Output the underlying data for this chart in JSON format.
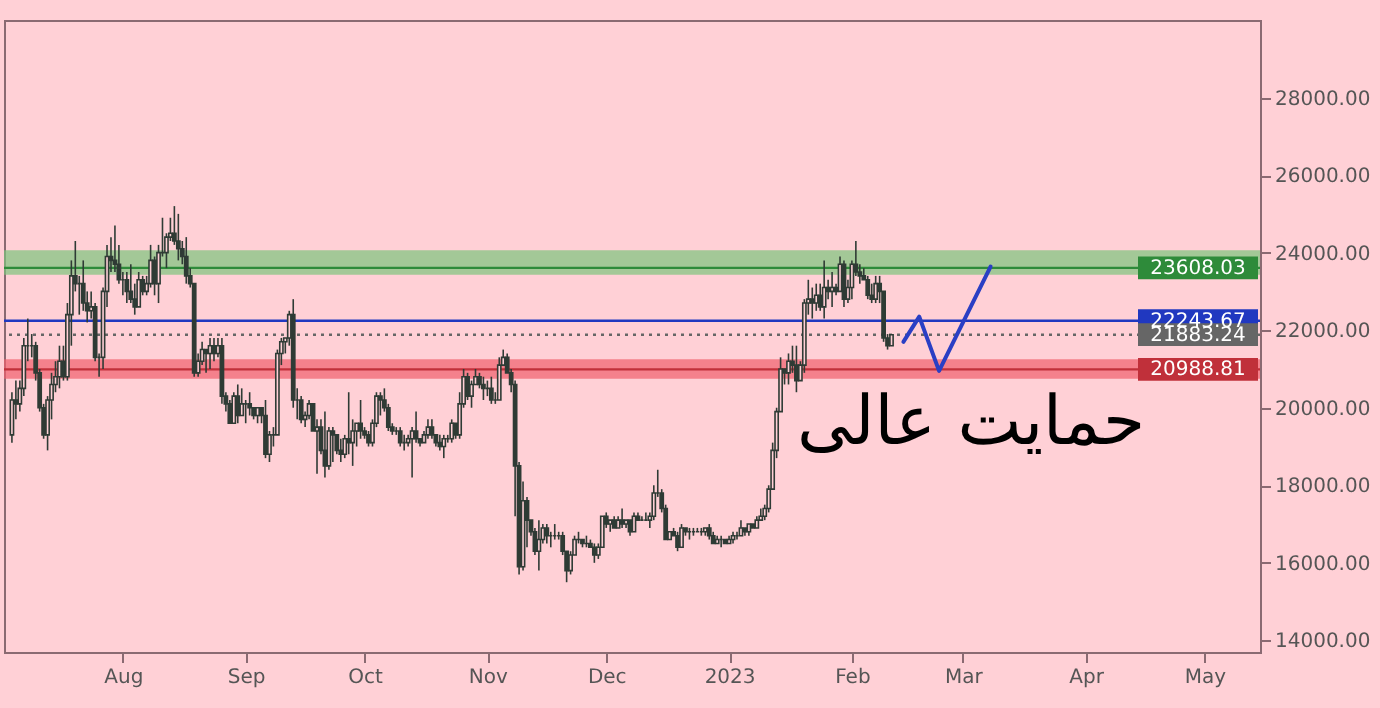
{
  "chart_data": {
    "type": "candlestick",
    "color": "#2f3b35",
    "x": [
      "2022-07-04",
      "2022-07-05",
      "2022-07-06",
      "2022-07-07",
      "2022-07-08",
      "2022-07-09",
      "2022-07-10",
      "2022-07-11",
      "2022-07-12",
      "2022-07-13",
      "2022-07-14",
      "2022-07-15",
      "2022-07-16",
      "2022-07-17",
      "2022-07-18",
      "2022-07-19",
      "2022-07-20",
      "2022-07-21",
      "2022-07-22",
      "2022-07-23",
      "2022-07-24",
      "2022-07-25",
      "2022-07-26",
      "2022-07-27",
      "2022-07-28",
      "2022-07-29",
      "2022-07-30",
      "2022-07-31",
      "2022-08-01",
      "2022-08-02",
      "2022-08-03",
      "2022-08-04",
      "2022-08-05",
      "2022-08-06",
      "2022-08-07",
      "2022-08-08",
      "2022-08-09",
      "2022-08-10",
      "2022-08-11",
      "2022-08-12",
      "2022-08-13",
      "2022-08-14",
      "2022-08-15",
      "2022-08-16",
      "2022-08-17",
      "2022-08-18",
      "2022-08-19",
      "2022-08-20",
      "2022-08-21",
      "2022-08-22",
      "2022-08-23",
      "2022-08-24",
      "2022-08-25",
      "2022-08-26",
      "2022-08-27",
      "2022-08-28",
      "2022-08-29",
      "2022-08-30",
      "2022-08-31",
      "2022-09-01",
      "2022-09-02",
      "2022-09-03",
      "2022-09-04",
      "2022-09-05",
      "2022-09-06",
      "2022-09-07",
      "2022-09-08",
      "2022-09-09",
      "2022-09-10",
      "2022-09-11",
      "2022-09-12",
      "2022-09-13",
      "2022-09-14",
      "2022-09-15",
      "2022-09-16",
      "2022-09-17",
      "2022-09-18",
      "2022-09-19",
      "2022-09-20",
      "2022-09-21",
      "2022-09-22",
      "2022-09-23",
      "2022-09-24",
      "2022-09-25",
      "2022-09-26",
      "2022-09-27",
      "2022-09-28",
      "2022-09-29",
      "2022-09-30",
      "2022-10-01",
      "2022-10-02",
      "2022-10-03",
      "2022-10-04",
      "2022-10-05",
      "2022-10-06",
      "2022-10-07",
      "2022-10-08",
      "2022-10-09",
      "2022-10-10",
      "2022-10-11",
      "2022-10-12",
      "2022-10-13",
      "2022-10-14",
      "2022-10-15",
      "2022-10-16",
      "2022-10-17",
      "2022-10-18",
      "2022-10-19",
      "2022-10-20",
      "2022-10-21",
      "2022-10-22",
      "2022-10-23",
      "2022-10-24",
      "2022-10-25",
      "2022-10-26",
      "2022-10-27",
      "2022-10-28",
      "2022-10-29",
      "2022-10-30",
      "2022-10-31",
      "2022-11-01",
      "2022-11-02",
      "2022-11-03",
      "2022-11-04",
      "2022-11-05",
      "2022-11-06",
      "2022-11-07",
      "2022-11-08",
      "2022-11-09",
      "2022-11-10",
      "2022-11-11",
      "2022-11-12",
      "2022-11-13",
      "2022-11-14",
      "2022-11-15",
      "2022-11-16",
      "2022-11-17",
      "2022-11-18",
      "2022-11-19",
      "2022-11-20",
      "2022-11-21",
      "2022-11-22",
      "2022-11-23",
      "2022-11-24",
      "2022-11-25",
      "2022-11-26",
      "2022-11-27",
      "2022-11-28",
      "2022-11-29",
      "2022-11-30",
      "2022-12-01",
      "2022-12-02",
      "2022-12-03",
      "2022-12-04",
      "2022-12-05",
      "2022-12-06",
      "2022-12-07",
      "2022-12-08",
      "2022-12-09",
      "2022-12-10",
      "2022-12-11",
      "2022-12-12",
      "2022-12-13",
      "2022-12-14",
      "2022-12-15",
      "2022-12-16",
      "2022-12-17",
      "2022-12-18",
      "2022-12-19",
      "2022-12-20",
      "2022-12-21",
      "2022-12-22",
      "2022-12-23",
      "2022-12-24",
      "2022-12-25",
      "2022-12-26",
      "2022-12-27",
      "2022-12-28",
      "2022-12-29",
      "2022-12-30",
      "2022-12-31",
      "2023-01-01",
      "2023-01-02",
      "2023-01-03",
      "2023-01-04",
      "2023-01-05",
      "2023-01-06",
      "2023-01-07",
      "2023-01-08",
      "2023-01-09",
      "2023-01-10",
      "2023-01-11",
      "2023-01-12",
      "2023-01-13",
      "2023-01-14",
      "2023-01-15",
      "2023-01-16",
      "2023-01-17",
      "2023-01-18",
      "2023-01-19",
      "2023-01-20",
      "2023-01-21",
      "2023-01-22",
      "2023-01-23",
      "2023-01-24",
      "2023-01-25",
      "2023-01-26",
      "2023-01-27",
      "2023-01-28",
      "2023-01-29",
      "2023-01-30",
      "2023-01-31",
      "2023-02-01",
      "2023-02-02",
      "2023-02-03",
      "2023-02-04",
      "2023-02-05",
      "2023-02-06",
      "2023-02-07",
      "2023-02-08",
      "2023-02-09",
      "2023-02-10",
      "2023-02-11"
    ],
    "ohlc": [
      [
        19300,
        20400,
        19100,
        20200
      ],
      [
        20200,
        20700,
        19700,
        20100
      ],
      [
        20100,
        20700,
        19900,
        20500
      ],
      [
        20500,
        21800,
        20300,
        21600
      ],
      [
        21600,
        22300,
        21200,
        21600
      ],
      [
        21600,
        21900,
        21300,
        21600
      ],
      [
        21600,
        21700,
        20700,
        20900
      ],
      [
        20900,
        21000,
        19900,
        20000
      ],
      [
        20000,
        20100,
        19200,
        19300
      ],
      [
        19300,
        20300,
        18900,
        20200
      ],
      [
        20200,
        20900,
        19700,
        20600
      ],
      [
        20600,
        21200,
        20400,
        20800
      ],
      [
        20800,
        21600,
        20500,
        21200
      ],
      [
        21200,
        21600,
        20700,
        20800
      ],
      [
        20800,
        22700,
        20700,
        22400
      ],
      [
        22400,
        23800,
        21600,
        23400
      ],
      [
        23400,
        24300,
        23000,
        23200
      ],
      [
        23200,
        23400,
        22400,
        23200
      ],
      [
        23200,
        23800,
        22500,
        22700
      ],
      [
        22700,
        23000,
        22200,
        22500
      ],
      [
        22500,
        23000,
        22300,
        22600
      ],
      [
        22600,
        22700,
        21200,
        21300
      ],
      [
        21300,
        21400,
        20800,
        21300
      ],
      [
        21300,
        23100,
        21000,
        23000
      ],
      [
        23000,
        24200,
        22600,
        23900
      ],
      [
        23900,
        24400,
        23500,
        23800
      ],
      [
        23800,
        24700,
        23500,
        23700
      ],
      [
        23700,
        24200,
        23200,
        23300
      ],
      [
        23300,
        23500,
        22900,
        23300
      ],
      [
        23300,
        23500,
        22700,
        23000
      ],
      [
        23000,
        23700,
        22700,
        22800
      ],
      [
        22800,
        23200,
        22400,
        22600
      ],
      [
        22600,
        23500,
        22600,
        23300
      ],
      [
        23300,
        23400,
        22900,
        23000
      ],
      [
        23000,
        23400,
        22900,
        23200
      ],
      [
        23200,
        24200,
        23100,
        23800
      ],
      [
        23800,
        23900,
        22900,
        23200
      ],
      [
        23200,
        24200,
        22700,
        24000
      ],
      [
        24000,
        24900,
        23900,
        24000
      ],
      [
        24000,
        24500,
        23600,
        24400
      ],
      [
        24400,
        24900,
        24300,
        24500
      ],
      [
        24500,
        25200,
        24200,
        24300
      ],
      [
        24300,
        25000,
        23800,
        24100
      ],
      [
        24100,
        24300,
        23700,
        23900
      ],
      [
        23900,
        24400,
        23200,
        23400
      ],
      [
        23400,
        23600,
        23100,
        23200
      ],
      [
        23200,
        23200,
        20800,
        20900
      ],
      [
        20900,
        21400,
        20800,
        21200
      ],
      [
        21200,
        21700,
        21100,
        21500
      ],
      [
        21500,
        21500,
        20900,
        21400
      ],
      [
        21400,
        21800,
        21000,
        21600
      ],
      [
        21600,
        21800,
        21200,
        21400
      ],
      [
        21400,
        21800,
        21300,
        21600
      ],
      [
        21600,
        21800,
        20100,
        20300
      ],
      [
        20300,
        20400,
        19900,
        20100
      ],
      [
        20100,
        20200,
        19600,
        19600
      ],
      [
        19600,
        20400,
        19600,
        20300
      ],
      [
        20300,
        20600,
        19600,
        19800
      ],
      [
        19800,
        20500,
        19800,
        20100
      ],
      [
        20100,
        20200,
        19600,
        20100
      ],
      [
        20100,
        20400,
        19800,
        20000
      ],
      [
        20000,
        20000,
        19700,
        19800
      ],
      [
        19800,
        20000,
        19600,
        20000
      ],
      [
        20000,
        20000,
        19600,
        19800
      ],
      [
        19800,
        20200,
        18700,
        18800
      ],
      [
        18800,
        19400,
        18600,
        19300
      ],
      [
        19300,
        19500,
        19000,
        19300
      ],
      [
        19300,
        21500,
        19300,
        21400
      ],
      [
        21400,
        21800,
        21100,
        21700
      ],
      [
        21700,
        21800,
        21400,
        21800
      ],
      [
        21800,
        22500,
        21600,
        22400
      ],
      [
        22400,
        22800,
        20000,
        20200
      ],
      [
        20200,
        20500,
        19700,
        20200
      ],
      [
        20200,
        20300,
        19600,
        19700
      ],
      [
        19700,
        19900,
        19500,
        19800
      ],
      [
        19800,
        20200,
        19700,
        20100
      ],
      [
        20100,
        20100,
        19400,
        19400
      ],
      [
        19400,
        19700,
        18300,
        19500
      ],
      [
        19500,
        19700,
        18800,
        18900
      ],
      [
        18900,
        19900,
        18200,
        18500
      ],
      [
        18500,
        19500,
        18400,
        19400
      ],
      [
        19400,
        19500,
        18600,
        19300
      ],
      [
        19300,
        19300,
        18800,
        18900
      ],
      [
        18900,
        19200,
        18600,
        18800
      ],
      [
        18800,
        19300,
        18700,
        19200
      ],
      [
        19200,
        20400,
        18800,
        19100
      ],
      [
        19100,
        19700,
        18500,
        19400
      ],
      [
        19400,
        19600,
        19000,
        19600
      ],
      [
        19600,
        20200,
        19200,
        19400
      ],
      [
        19400,
        19500,
        19200,
        19300
      ],
      [
        19300,
        19400,
        19000,
        19100
      ],
      [
        19100,
        19700,
        19000,
        19600
      ],
      [
        19600,
        20400,
        19500,
        20300
      ],
      [
        20300,
        20400,
        19800,
        20200
      ],
      [
        20200,
        20500,
        19900,
        20000
      ],
      [
        20000,
        20100,
        19400,
        19500
      ],
      [
        19500,
        19600,
        19300,
        19400
      ],
      [
        19400,
        19500,
        19300,
        19400
      ],
      [
        19400,
        19500,
        19000,
        19100
      ],
      [
        19100,
        19300,
        18900,
        19100
      ],
      [
        19100,
        19300,
        19000,
        19200
      ],
      [
        19200,
        19500,
        18200,
        19400
      ],
      [
        19400,
        19900,
        19100,
        19200
      ],
      [
        19200,
        19200,
        19000,
        19100
      ],
      [
        19100,
        19400,
        19100,
        19300
      ],
      [
        19300,
        19700,
        19200,
        19500
      ],
      [
        19500,
        19700,
        19200,
        19300
      ],
      [
        19300,
        19300,
        19000,
        19100
      ],
      [
        19100,
        19300,
        18900,
        19000
      ],
      [
        19000,
        19300,
        18700,
        19200
      ],
      [
        19200,
        19300,
        19100,
        19200
      ],
      [
        19200,
        19700,
        19100,
        19600
      ],
      [
        19600,
        19600,
        19200,
        19300
      ],
      [
        19300,
        20400,
        19200,
        20100
      ],
      [
        20100,
        21000,
        20000,
        20800
      ],
      [
        20800,
        20900,
        20200,
        20300
      ],
      [
        20300,
        20700,
        20000,
        20600
      ],
      [
        20600,
        21000,
        20600,
        20800
      ],
      [
        20800,
        20900,
        20500,
        20600
      ],
      [
        20600,
        20800,
        20200,
        20500
      ],
      [
        20500,
        20700,
        20300,
        20500
      ],
      [
        20500,
        20800,
        20100,
        20200
      ],
      [
        20200,
        20400,
        20100,
        20200
      ],
      [
        20200,
        21300,
        20200,
        21100
      ],
      [
        21100,
        21500,
        21100,
        21300
      ],
      [
        21300,
        21400,
        20900,
        20900
      ],
      [
        20900,
        21000,
        20400,
        20600
      ],
      [
        20600,
        20700,
        17200,
        18500
      ],
      [
        18500,
        18600,
        15700,
        15900
      ],
      [
        15900,
        18100,
        15800,
        17600
      ],
      [
        17600,
        17700,
        16400,
        17100
      ],
      [
        17100,
        17100,
        16700,
        16800
      ],
      [
        16800,
        16900,
        16200,
        16300
      ],
      [
        16300,
        17100,
        15800,
        16600
      ],
      [
        16600,
        17000,
        16500,
        16900
      ],
      [
        16900,
        17000,
        16500,
        16700
      ],
      [
        16700,
        16800,
        16400,
        16700
      ],
      [
        16700,
        17000,
        16600,
        16700
      ],
      [
        16700,
        16800,
        16600,
        16700
      ],
      [
        16700,
        16800,
        16200,
        16300
      ],
      [
        16300,
        16300,
        15500,
        15800
      ],
      [
        15800,
        16300,
        15700,
        16200
      ],
      [
        16200,
        16700,
        16200,
        16600
      ],
      [
        16600,
        16800,
        16500,
        16600
      ],
      [
        16600,
        16600,
        16400,
        16500
      ],
      [
        16500,
        16700,
        16400,
        16500
      ],
      [
        16500,
        16600,
        16400,
        16400
      ],
      [
        16400,
        16500,
        16000,
        16200
      ],
      [
        16200,
        16500,
        16100,
        16400
      ],
      [
        16400,
        17200,
        16400,
        17200
      ],
      [
        17200,
        17300,
        16900,
        17000
      ],
      [
        17000,
        17100,
        16800,
        17100
      ],
      [
        17100,
        17200,
        16900,
        16900
      ],
      [
        16900,
        17200,
        16900,
        17100
      ],
      [
        17100,
        17400,
        16900,
        17000
      ],
      [
        17000,
        17100,
        16900,
        17100
      ],
      [
        17100,
        17100,
        16700,
        16800
      ],
      [
        16800,
        17300,
        16800,
        17200
      ],
      [
        17200,
        17300,
        17100,
        17100
      ],
      [
        17100,
        17200,
        17100,
        17100
      ],
      [
        17100,
        17300,
        17100,
        17100
      ],
      [
        17100,
        17300,
        16900,
        17200
      ],
      [
        17200,
        18000,
        17100,
        17800
      ],
      [
        17800,
        18400,
        17700,
        17800
      ],
      [
        17800,
        17900,
        17300,
        17400
      ],
      [
        17400,
        17500,
        16600,
        16600
      ],
      [
        16600,
        16800,
        16600,
        16800
      ],
      [
        16800,
        16900,
        16700,
        16700
      ],
      [
        16700,
        16800,
        16300,
        16400
      ],
      [
        16400,
        17000,
        16400,
        16900
      ],
      [
        16900,
        16900,
        16700,
        16800
      ],
      [
        16800,
        16900,
        16600,
        16800
      ],
      [
        16800,
        16900,
        16700,
        16800
      ],
      [
        16800,
        16900,
        16800,
        16800
      ],
      [
        16800,
        16900,
        16700,
        16800
      ],
      [
        16800,
        16900,
        16700,
        16900
      ],
      [
        16900,
        17000,
        16600,
        16700
      ],
      [
        16700,
        16800,
        16500,
        16500
      ],
      [
        16500,
        16700,
        16500,
        16600
      ],
      [
        16600,
        16700,
        16400,
        16600
      ],
      [
        16600,
        16600,
        16500,
        16500
      ],
      [
        16500,
        16700,
        16500,
        16600
      ],
      [
        16600,
        16800,
        16500,
        16700
      ],
      [
        16700,
        16800,
        16600,
        16700
      ],
      [
        16700,
        17100,
        16700,
        16900
      ],
      [
        16900,
        16900,
        16700,
        16800
      ],
      [
        16800,
        17000,
        16700,
        17000
      ],
      [
        17000,
        17000,
        16900,
        16900
      ],
      [
        16900,
        17200,
        16900,
        17100
      ],
      [
        17100,
        17400,
        17100,
        17200
      ],
      [
        17200,
        17500,
        17100,
        17400
      ],
      [
        17400,
        18000,
        17300,
        17900
      ],
      [
        17900,
        19100,
        17900,
        18900
      ],
      [
        18900,
        20000,
        18700,
        19900
      ],
      [
        19900,
        21300,
        19900,
        21000
      ],
      [
        21000,
        21000,
        20600,
        20900
      ],
      [
        20900,
        21400,
        20600,
        21200
      ],
      [
        21200,
        21600,
        20900,
        21100
      ],
      [
        21100,
        21600,
        20400,
        20700
      ],
      [
        20700,
        21200,
        20700,
        21100
      ],
      [
        21100,
        22800,
        20900,
        22700
      ],
      [
        22700,
        23300,
        22400,
        22800
      ],
      [
        22800,
        23100,
        22300,
        22700
      ],
      [
        22700,
        23200,
        22500,
        22900
      ],
      [
        22900,
        23200,
        22500,
        22600
      ],
      [
        22600,
        23800,
        22300,
        23100
      ],
      [
        23100,
        23300,
        22800,
        23000
      ],
      [
        23000,
        23500,
        22600,
        23100
      ],
      [
        23100,
        23200,
        22900,
        23000
      ],
      [
        23000,
        23900,
        23000,
        23700
      ],
      [
        23700,
        23800,
        22600,
        22800
      ],
      [
        22800,
        23300,
        22700,
        23100
      ],
      [
        23100,
        23800,
        22800,
        23700
      ],
      [
        23700,
        24300,
        23400,
        23500
      ],
      [
        23500,
        23700,
        23200,
        23400
      ],
      [
        23400,
        23600,
        23300,
        23300
      ],
      [
        23300,
        23400,
        22800,
        22900
      ],
      [
        22900,
        23200,
        22700,
        22800
      ],
      [
        22800,
        23400,
        22700,
        23200
      ],
      [
        23200,
        23400,
        22700,
        23000
      ],
      [
        23000,
        23000,
        21700,
        21800
      ],
      [
        21800,
        21900,
        21500,
        21600
      ],
      [
        21600,
        21900,
        21600,
        21883.24
      ]
    ],
    "series": [
      {
        "type": "line",
        "color": "#2a3fc4",
        "x": [
          "2023-02-14",
          "2023-02-18",
          "2023-02-23",
          "2023-03-08"
        ],
        "values": [
          21700,
          22350,
          20950,
          23640
        ]
      }
    ],
    "xlim": [
      "2022-07-02",
      "2023-05-15"
    ],
    "xticks": [
      {
        "value": "2022-08-01",
        "label": "Aug"
      },
      {
        "value": "2022-09-01",
        "label": "Sep"
      },
      {
        "value": "2022-10-01",
        "label": "Oct"
      },
      {
        "value": "2022-11-01",
        "label": "Nov"
      },
      {
        "value": "2022-12-01",
        "label": "Dec"
      },
      {
        "value": "2023-01-01",
        "label": "2023"
      },
      {
        "value": "2023-02-01",
        "label": "Feb"
      },
      {
        "value": "2023-03-01",
        "label": "Mar"
      },
      {
        "value": "2023-04-01",
        "label": "Apr"
      },
      {
        "value": "2023-05-01",
        "label": "May"
      }
    ],
    "ylim": [
      13700,
      30000
    ],
    "yticks": [
      {
        "value": 14000,
        "label": "14000.00"
      },
      {
        "value": 16000,
        "label": "16000.00"
      },
      {
        "value": 18000,
        "label": "18000.00"
      },
      {
        "value": 20000,
        "label": "20000.00"
      },
      {
        "value": 22000,
        "label": "22000.00"
      },
      {
        "value": 24000,
        "label": "24000.00"
      },
      {
        "value": 26000,
        "label": "26000.00"
      },
      {
        "value": 28000,
        "label": "28000.00"
      }
    ],
    "bands": [
      {
        "axis": "y",
        "from": 23430,
        "to": 24060,
        "color": "#7cc47c"
      },
      {
        "axis": "y",
        "from": 20750,
        "to": 21250,
        "color": "#f0606c"
      }
    ],
    "ref_lines": [
      {
        "axis": "y",
        "value": 23608.03,
        "label": "23608.03",
        "color": "#2e8b3a"
      },
      {
        "axis": "y",
        "value": 22243.67,
        "label": "22243.67",
        "color": "#2038c0"
      },
      {
        "axis": "y",
        "value": 21883.24,
        "label": "21883.24",
        "color": "#666666",
        "line_style": "dotted"
      },
      {
        "axis": "y",
        "value": 20988.81,
        "label": "20988.81",
        "color": "#c0303a"
      }
    ],
    "annotations": [
      "حمایت عالی"
    ]
  }
}
